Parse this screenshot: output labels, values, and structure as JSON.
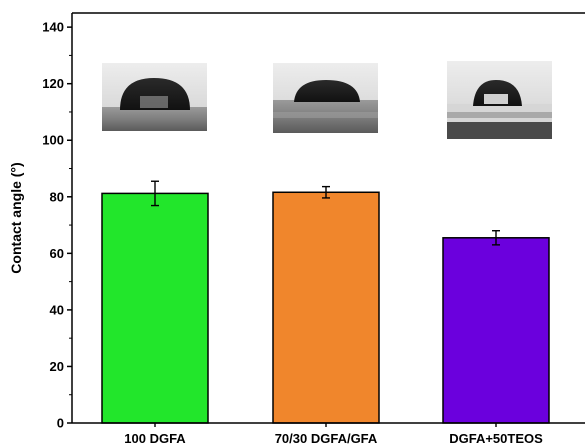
{
  "chart_data": {
    "type": "bar",
    "categories": [
      "100 DGFA",
      "70/30 DGFA/GFA",
      "DGFA+50TEOS"
    ],
    "values": [
      81.2,
      81.6,
      65.5
    ],
    "errors": [
      4.3,
      2.0,
      2.5
    ],
    "colors": [
      "#22e62b",
      "#f0862c",
      "#6b00dd"
    ],
    "ylabel": "Contact angle (°)",
    "xlabel": "",
    "ylim": [
      0,
      145
    ],
    "yticks": [
      0,
      20,
      40,
      60,
      80,
      100,
      120,
      140
    ],
    "grid": false,
    "inset_images": [
      "water droplet photo 100 DGFA",
      "water droplet photo 70/30 DGFA/GFA",
      "water droplet photo DGFA+50TEOS"
    ]
  }
}
